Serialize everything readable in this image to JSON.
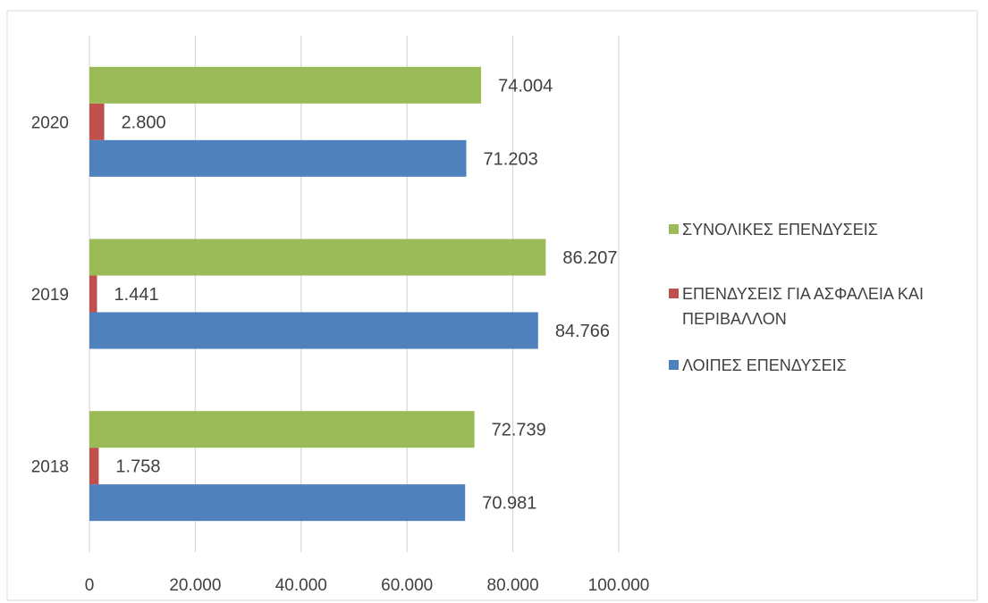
{
  "chart_data": {
    "type": "bar",
    "orientation": "horizontal",
    "categories": [
      "2018",
      "2019",
      "2020"
    ],
    "series": [
      {
        "name": "ΛΟΙΠΕΣ ΕΠΕΝΔΥΣΕΙΣ",
        "color": "#4f81bd",
        "values": [
          70981,
          84766,
          71203
        ],
        "labels": [
          "70.981",
          "84.766",
          "71.203"
        ]
      },
      {
        "name": "ΕΠΕΝΔΥΣΕΙΣ ΓΙΑ ΑΣΦΑΛΕΙΑ ΚΑΙ ΠΕΡΙΒΑΛΛΟΝ",
        "name_lines": [
          "ΕΠΕΝΔΥΣΕΙΣ ΓΙΑ ΑΣΦΑΛΕΙΑ ΚΑΙ",
          "ΠΕΡΙΒΑΛΛΟΝ"
        ],
        "color": "#c0504d",
        "values": [
          1758,
          1441,
          2800
        ],
        "labels": [
          "1.758",
          "1.441",
          "2.800"
        ]
      },
      {
        "name": "ΣΥΝΟΛΙΚΕΣ ΕΠΕΝΔΥΣΕΙΣ",
        "color": "#9bbb59",
        "values": [
          72739,
          86207,
          74004
        ],
        "labels": [
          "72.739",
          "86.207",
          "74.004"
        ]
      }
    ],
    "xlim": [
      0,
      100000
    ],
    "xticks": [
      0,
      20000,
      40000,
      60000,
      80000,
      100000
    ],
    "xtick_labels": [
      "0",
      "20.000",
      "40.000",
      "60.000",
      "80.000",
      "100.000"
    ],
    "grid": "vertical",
    "legend": "right",
    "legend_order": [
      "ΣΥΝΟΛΙΚΕΣ ΕΠΕΝΔΥΣΕΙΣ",
      "ΕΠΕΝΔΥΣΕΙΣ ΓΙΑ ΑΣΦΑΛΕΙΑ ΚΑΙ ΠΕΡΙΒΑΛΛΟΝ",
      "ΛΟΙΠΕΣ ΕΠΕΝΔΥΣΕΙΣ"
    ],
    "title": "",
    "xlabel": "",
    "ylabel": ""
  }
}
